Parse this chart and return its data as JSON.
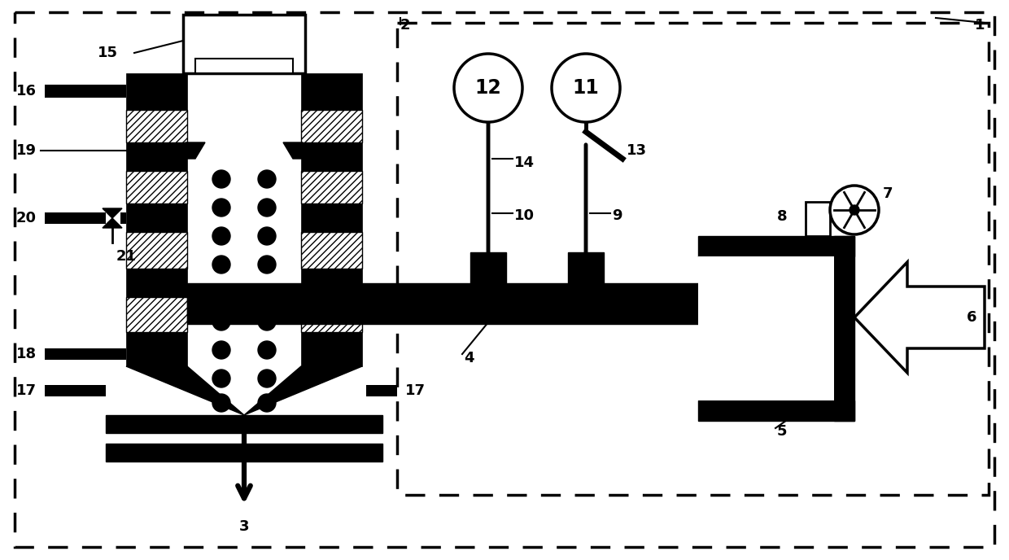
{
  "fig_width": 12.4,
  "fig_height": 6.88,
  "bg_color": "#ffffff",
  "black": "#000000",
  "white": "#ffffff",
  "label_fontsize": 13
}
